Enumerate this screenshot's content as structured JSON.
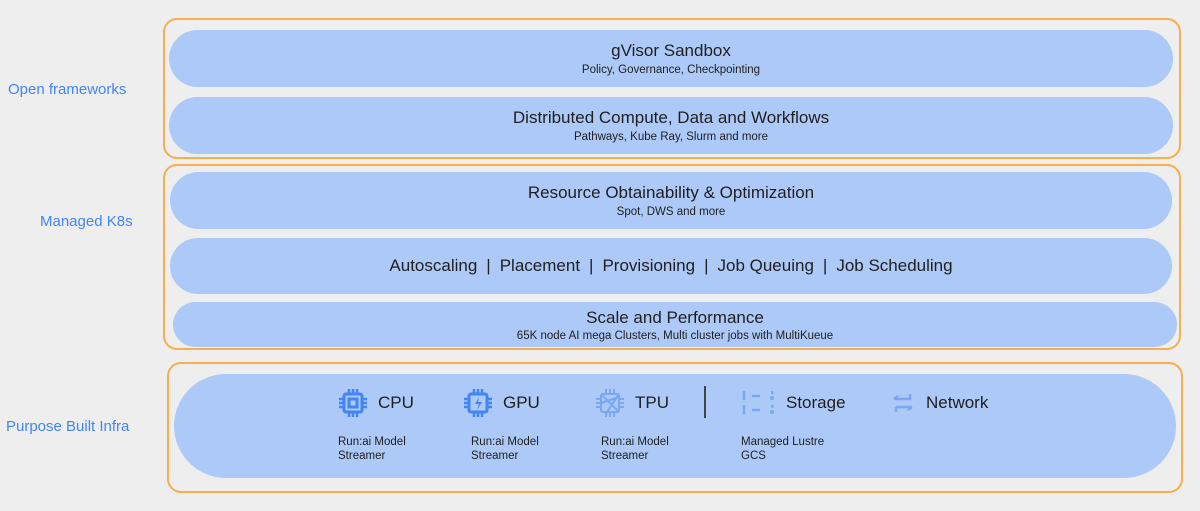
{
  "layers": [
    {
      "label": "Open frameworks"
    },
    {
      "label": "Managed K8s"
    },
    {
      "label": "Purpose Built Infra"
    }
  ],
  "open_frameworks": [
    {
      "title": "gVisor Sandbox",
      "subtitle": "Policy, Governance, Checkpointing"
    },
    {
      "title": "Distributed Compute, Data and Workflows",
      "subtitle": "Pathways, Kube Ray, Slurm and more"
    }
  ],
  "managed_k8s": {
    "resource": {
      "title": "Resource Obtainability & Optimization",
      "subtitle": "Spot, DWS and more"
    },
    "features": [
      "Autoscaling",
      "Placement",
      "Provisioning",
      "Job Queuing",
      "Job Scheduling"
    ],
    "separator": "|",
    "scale": {
      "title": "Scale and Performance",
      "subtitle": "65K node AI mega Clusters, Multi cluster jobs with MultiKueue"
    }
  },
  "infra": {
    "items": [
      {
        "label": "CPU",
        "icon": "cpu-icon",
        "lines": [
          "Run:ai Model",
          "Streamer"
        ]
      },
      {
        "label": "GPU",
        "icon": "gpu-icon",
        "lines": [
          "Run:ai Model",
          "Streamer"
        ]
      },
      {
        "label": "TPU",
        "icon": "tpu-icon",
        "lines": [
          "Run:ai Model",
          "Streamer"
        ]
      },
      {
        "label": "Storage",
        "icon": "storage-icon",
        "lines": [
          "Managed Lustre",
          "GCS"
        ]
      },
      {
        "label": "Network",
        "icon": "network-icon",
        "lines": []
      }
    ]
  },
  "colors": {
    "background": "#eeeeee",
    "pill": "#adc9f7",
    "border": "#f6ae4f",
    "label": "#4285f4",
    "icon": "#4285f4"
  }
}
